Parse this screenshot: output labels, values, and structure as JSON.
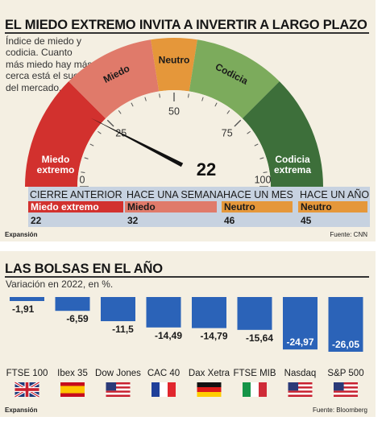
{
  "gauge_panel": {
    "title": "EL MIEDO EXTREMO INVITA A INVERTIR A LARGO PLAZO",
    "intro_lines": [
      "Índice de miedo y",
      "codicia. Cuanto",
      "más miedo hay más",
      "cerca está el suelo",
      "del mercado."
    ],
    "source": "Fuente: CNN",
    "brand": "Expansión"
  },
  "history": [
    {
      "label": "CIERRE ANTERIOR",
      "state": "Miedo extremo",
      "value": "22",
      "color": "#d2312e",
      "text_color": "#ffffff"
    },
    {
      "label": "HACE UNA SEMANA",
      "state": "Miedo",
      "value": "32",
      "color": "#e07a6a",
      "text_color": "#1a1a1a"
    },
    {
      "label": "HACE UN MES",
      "state": "Neutro",
      "value": "46",
      "color": "#e5973a",
      "text_color": "#1a1a1a"
    },
    {
      "label": "HACE UN AÑO",
      "state": "Neutro",
      "value": "45",
      "color": "#e5973a",
      "text_color": "#1a1a1a"
    }
  ],
  "bars_panel": {
    "title": "LAS BOLSAS EN EL AÑO",
    "subtitle": "Variación en 2022, en %.",
    "source": "Fuente: Bloomberg",
    "brand": "Expansión"
  },
  "chart_data": [
    {
      "type": "gauge",
      "value": 22,
      "value_label": "22",
      "range": [
        0,
        100
      ],
      "ticks": [
        0,
        25,
        50,
        75,
        100
      ],
      "tick_labels": [
        "0",
        "25",
        "50",
        "75",
        "100"
      ],
      "bands": [
        {
          "label": "Miedo extremo",
          "from": 0,
          "to": 25,
          "color": "#d2312e",
          "text_color": "#ffffff"
        },
        {
          "label": "Miedo",
          "from": 25,
          "to": 45,
          "color": "#e07a6a",
          "text_color": "#1a1a1a"
        },
        {
          "label": "Neutro",
          "from": 45,
          "to": 55,
          "color": "#e5973a",
          "text_color": "#1a1a1a"
        },
        {
          "label": "Codicia",
          "from": 55,
          "to": 75,
          "color": "#7cab5c",
          "text_color": "#1a1a1a"
        },
        {
          "label": "Codicia extrema",
          "from": 75,
          "to": 100,
          "color": "#3d6f3a",
          "text_color": "#ffffff"
        }
      ]
    },
    {
      "type": "bar",
      "categories": [
        "FTSE 100",
        "Ibex 35",
        "Dow Jones",
        "CAC 40",
        "Dax Xetra",
        "FTSE MIB",
        "Nasdaq",
        "S&P 500"
      ],
      "values": [
        -1.91,
        -6.59,
        -11.5,
        -14.49,
        -14.79,
        -15.64,
        -24.97,
        -26.05
      ],
      "value_labels": [
        "-1,91",
        "-6,59",
        "-11,5",
        "-14,49",
        "-14,79",
        "-15,64",
        "-24,97",
        "-26,05"
      ],
      "ylim": [
        -26.05,
        0
      ],
      "bar_color": "#2b63b8",
      "flags": [
        "uk",
        "spain",
        "usa",
        "france",
        "germany",
        "italy",
        "usa",
        "usa"
      ]
    }
  ]
}
